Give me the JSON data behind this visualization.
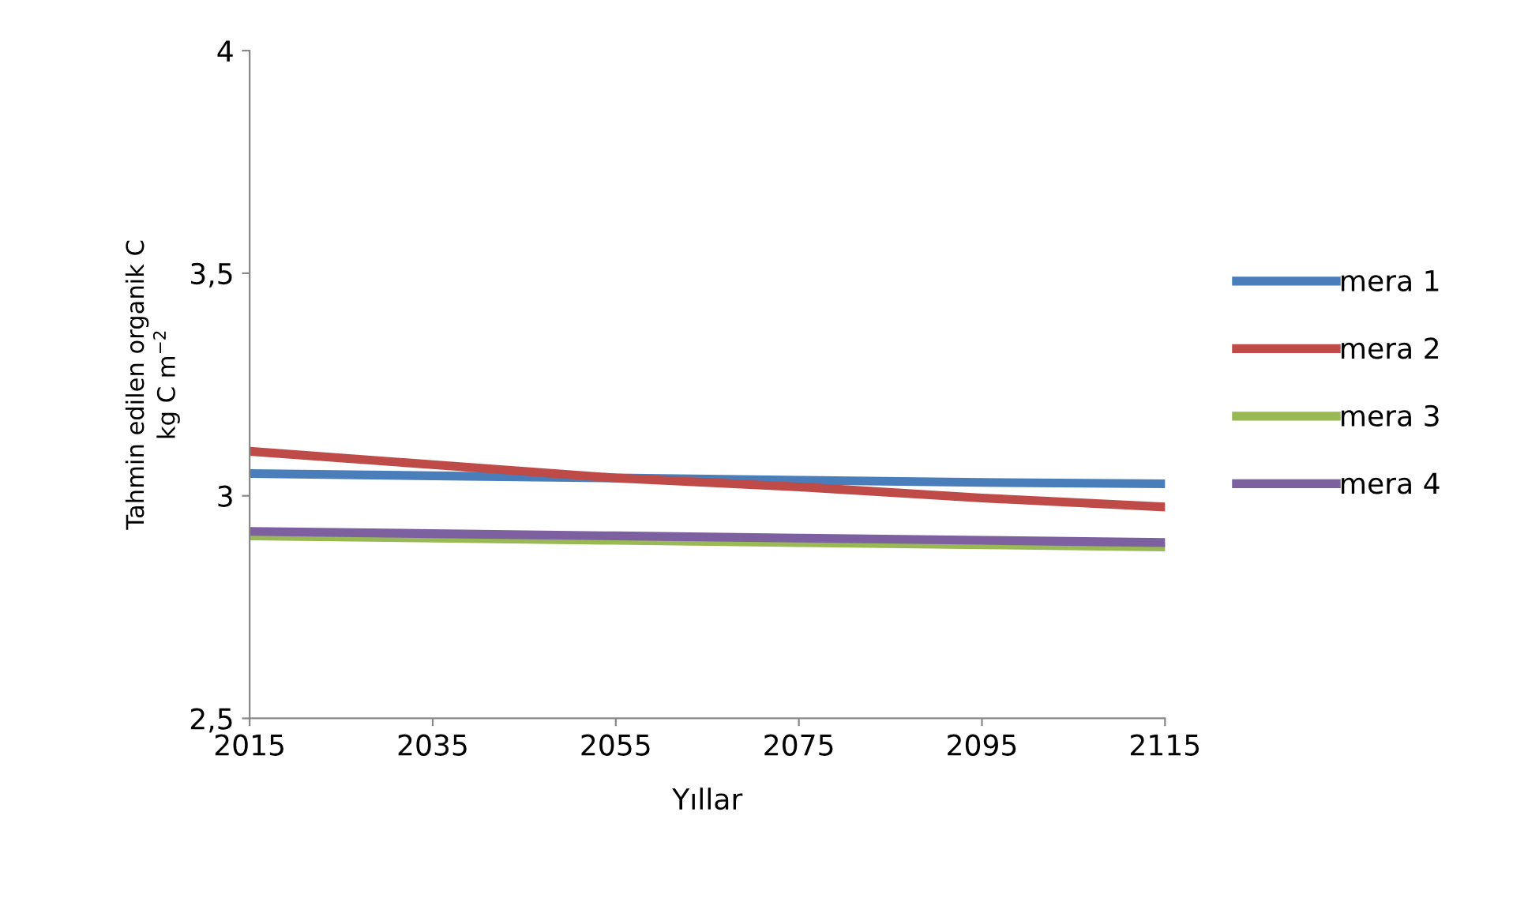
{
  "chart_data": {
    "type": "line",
    "xlabel": "Yıllar",
    "ylabel": "Tahmin edilen organik C\nkg C m$^{−2}$",
    "x": [
      2015,
      2035,
      2055,
      2075,
      2095,
      2115
    ],
    "series": [
      {
        "name": "mera 1",
        "color": "#4a7ebb",
        "values": [
          3.05,
          3.045,
          3.04,
          3.035,
          3.03,
          3.027
        ]
      },
      {
        "name": "mera 2",
        "color": "#be4b48",
        "values": [
          3.1,
          3.07,
          3.04,
          3.02,
          2.995,
          2.975
        ]
      },
      {
        "name": "mera 3",
        "color": "#98b954",
        "values": [
          2.91,
          2.905,
          2.9,
          2.895,
          2.89,
          2.885
        ]
      },
      {
        "name": "mera 4",
        "color": "#7d60a0",
        "values": [
          2.92,
          2.915,
          2.91,
          2.905,
          2.9,
          2.895
        ]
      }
    ],
    "xlim": [
      2015,
      2115
    ],
    "xticks": [
      2015,
      2035,
      2055,
      2075,
      2095,
      2115
    ],
    "ylim": [
      2.5,
      4
    ],
    "yticks": [
      {
        "value": 2.5,
        "label": "2,5"
      },
      3,
      {
        "value": 3.5,
        "label": "3,5"
      },
      4
    ],
    "grid": false,
    "legend": "right",
    "marker": "none",
    "line_style": "solid"
  }
}
